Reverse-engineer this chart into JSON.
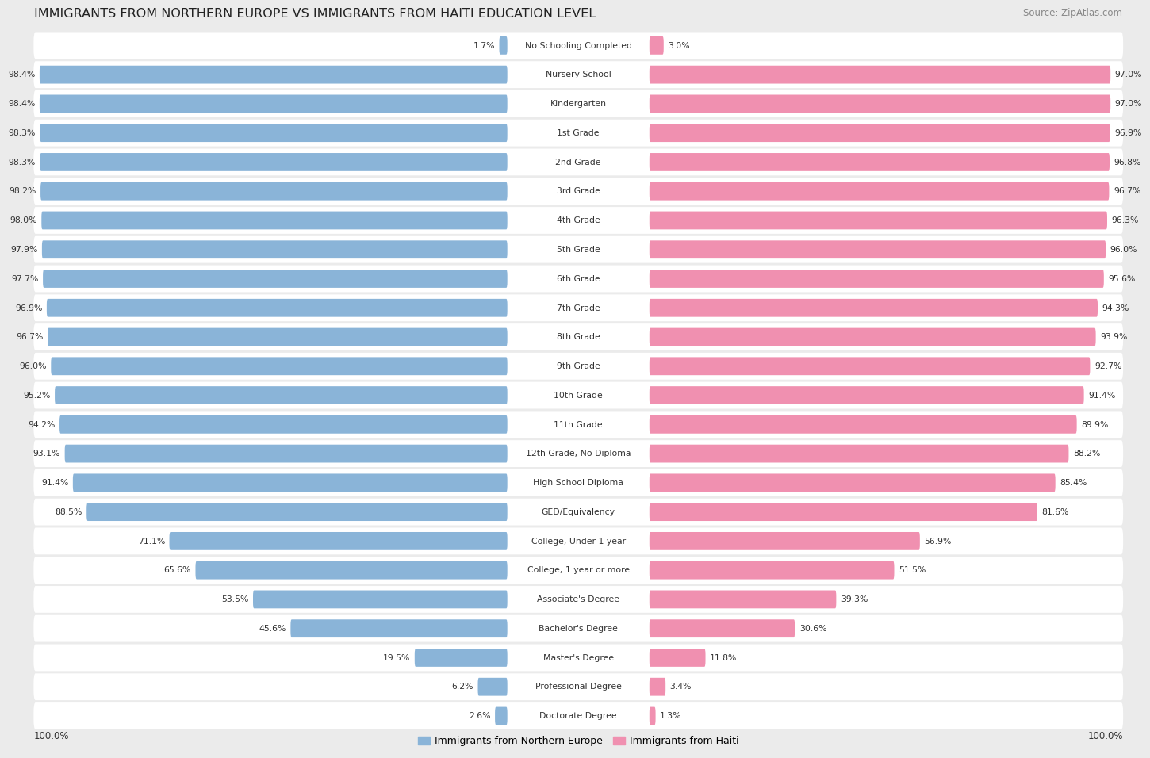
{
  "title": "IMMIGRANTS FROM NORTHERN EUROPE VS IMMIGRANTS FROM HAITI EDUCATION LEVEL",
  "source": "Source: ZipAtlas.com",
  "categories": [
    "No Schooling Completed",
    "Nursery School",
    "Kindergarten",
    "1st Grade",
    "2nd Grade",
    "3rd Grade",
    "4th Grade",
    "5th Grade",
    "6th Grade",
    "7th Grade",
    "8th Grade",
    "9th Grade",
    "10th Grade",
    "11th Grade",
    "12th Grade, No Diploma",
    "High School Diploma",
    "GED/Equivalency",
    "College, Under 1 year",
    "College, 1 year or more",
    "Associate's Degree",
    "Bachelor's Degree",
    "Master's Degree",
    "Professional Degree",
    "Doctorate Degree"
  ],
  "northern_europe": [
    1.7,
    98.4,
    98.4,
    98.3,
    98.3,
    98.2,
    98.0,
    97.9,
    97.7,
    96.9,
    96.7,
    96.0,
    95.2,
    94.2,
    93.1,
    91.4,
    88.5,
    71.1,
    65.6,
    53.5,
    45.6,
    19.5,
    6.2,
    2.6
  ],
  "haiti": [
    3.0,
    97.0,
    97.0,
    96.9,
    96.8,
    96.7,
    96.3,
    96.0,
    95.6,
    94.3,
    93.9,
    92.7,
    91.4,
    89.9,
    88.2,
    85.4,
    81.6,
    56.9,
    51.5,
    39.3,
    30.6,
    11.8,
    3.4,
    1.3
  ],
  "blue_color": "#8ab4d8",
  "pink_color": "#f090b0",
  "bg_color": "#ebebeb",
  "bar_bg_color": "#ffffff",
  "row_sep_color": "#dddddd",
  "title_color": "#222222",
  "label_color": "#333333",
  "value_color": "#333333",
  "legend_blue": "Immigrants from Northern Europe",
  "legend_pink": "Immigrants from Haiti",
  "max_value": 100.0
}
